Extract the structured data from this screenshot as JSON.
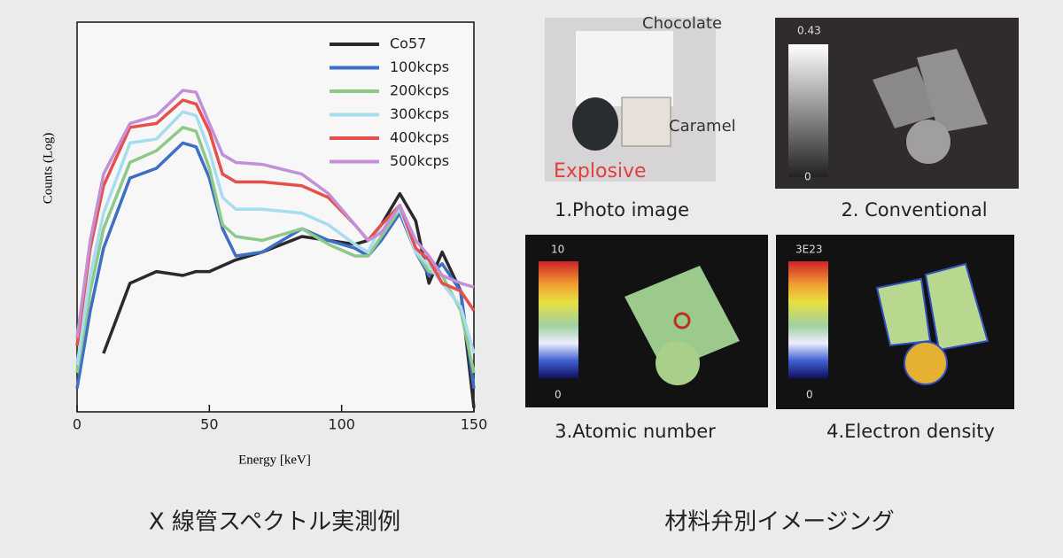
{
  "chart_data": {
    "type": "line",
    "x_label": "Energy [keV]",
    "y_label": "Counts (Log)",
    "x": [
      0,
      5,
      10,
      20,
      30,
      40,
      45,
      50,
      55,
      60,
      70,
      85,
      95,
      105,
      110,
      115,
      122,
      128,
      133,
      138,
      145,
      150
    ],
    "xlim": [
      0,
      150
    ],
    "xticks": [
      0,
      50,
      100,
      150
    ],
    "ylim": [
      0,
      100
    ],
    "series": [
      {
        "name": "Co57",
        "color": "#2a2a2a",
        "values": [
          null,
          null,
          15,
          33,
          36,
          35,
          36,
          36,
          37.5,
          39,
          41,
          45,
          44,
          43,
          44,
          48,
          56,
          49,
          33,
          41,
          31,
          1
        ]
      },
      {
        "name": "100kcps",
        "color": "#3d6fc4",
        "values": [
          6,
          26,
          42,
          60,
          62.5,
          69,
          68,
          60,
          47,
          40,
          41,
          47,
          44,
          42,
          40,
          44,
          51,
          41,
          35,
          38,
          31,
          6
        ]
      },
      {
        "name": "200kcps",
        "color": "#8fc98a",
        "values": [
          10,
          31,
          47,
          64,
          67,
          73,
          72,
          62.5,
          48,
          45,
          44,
          47,
          43,
          40,
          40,
          45,
          52,
          41,
          36,
          35,
          26,
          10
        ]
      },
      {
        "name": "300kcps",
        "color": "#a8dcef",
        "values": [
          12,
          35,
          51,
          69,
          70,
          77,
          76,
          67,
          55,
          52,
          52,
          51,
          48,
          43,
          41,
          48,
          52,
          41,
          37.5,
          33,
          27,
          15
        ]
      },
      {
        "name": "400kcps",
        "color": "#e5504a",
        "values": [
          17,
          42,
          58,
          73,
          74,
          80,
          79,
          72,
          61,
          59,
          59,
          58,
          55,
          48,
          44,
          48,
          53,
          42,
          39,
          33,
          31,
          26
        ]
      },
      {
        "name": "500kcps",
        "color": "#c48fd9",
        "values": [
          19,
          44,
          61,
          74,
          76,
          82.5,
          82,
          74,
          66,
          64,
          63.5,
          61,
          56,
          48,
          44,
          46,
          53,
          44,
          40,
          35,
          33,
          32
        ]
      }
    ]
  },
  "images": [
    {
      "label": "1.Photo image",
      "annotations": [
        "Chocolate",
        "Caramel",
        "Explosive"
      ]
    },
    {
      "label": "2. Conventional",
      "scale": [
        "0.43",
        "0"
      ]
    },
    {
      "label": "3.Atomic number",
      "scale": [
        "10",
        "0"
      ]
    },
    {
      "label": "4.Electron density",
      "scale": [
        "3E23",
        "0"
      ]
    }
  ],
  "captions": [
    "X 線管スペクトル実測例",
    "材料弁別イメージング"
  ]
}
